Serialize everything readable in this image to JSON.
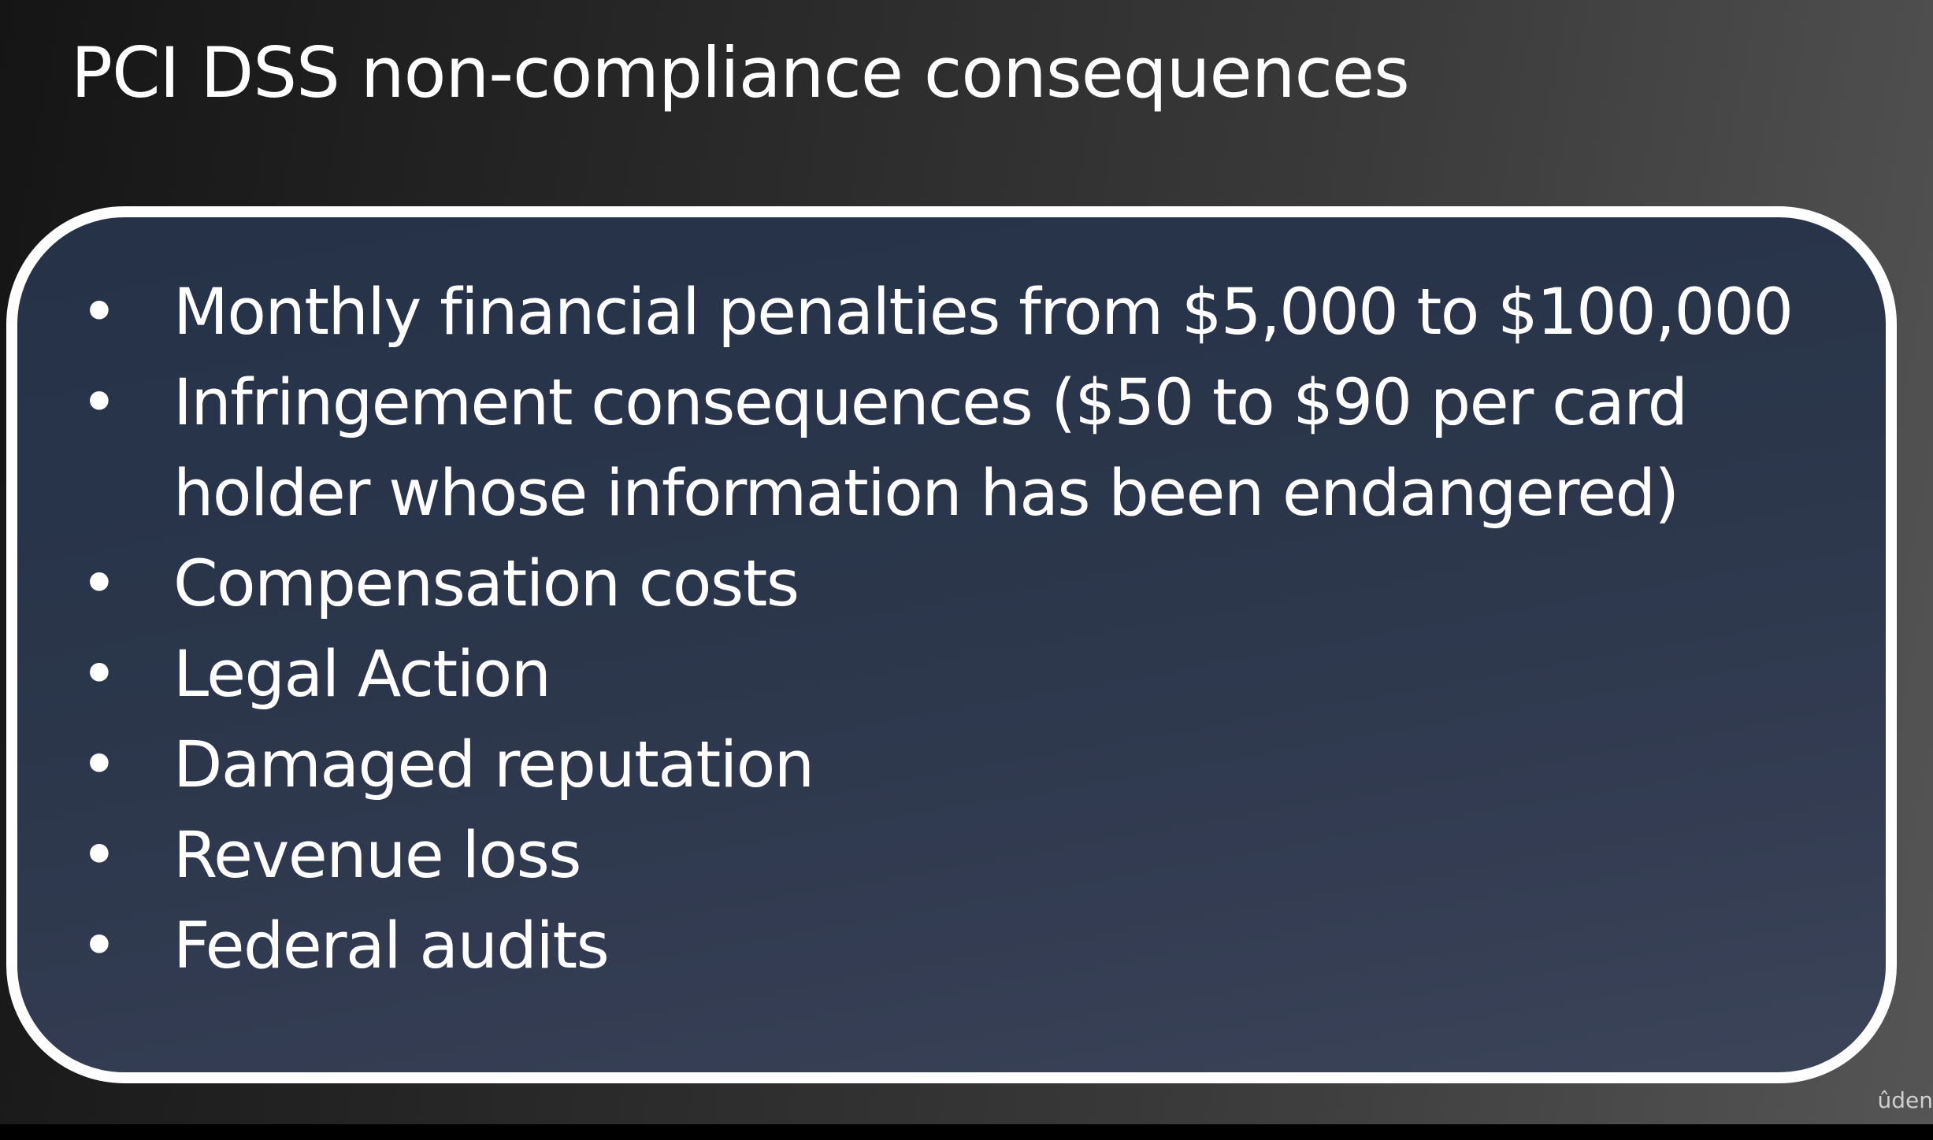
{
  "slide": {
    "title": "PCI DSS non-compliance consequences",
    "bullets": [
      {
        "lines": [
          "Monthly financial penalties from $5,000 to $100,000"
        ]
      },
      {
        "lines": [
          "Infringement consequences ($50 to $90 per card",
          "holder whose information has been endangered)"
        ]
      },
      {
        "lines": [
          "Compensation costs"
        ]
      },
      {
        "lines": [
          "Legal Action"
        ]
      },
      {
        "lines": [
          "Damaged reputation"
        ]
      },
      {
        "lines": [
          "Revenue loss"
        ]
      },
      {
        "lines": [
          "Federal audits"
        ]
      }
    ],
    "bullet_glyph": "•"
  },
  "watermark": {
    "text": "ûden"
  },
  "colors": {
    "text": "#ffffff",
    "box_border": "#ffffff",
    "box_fill": "#2b364b"
  }
}
